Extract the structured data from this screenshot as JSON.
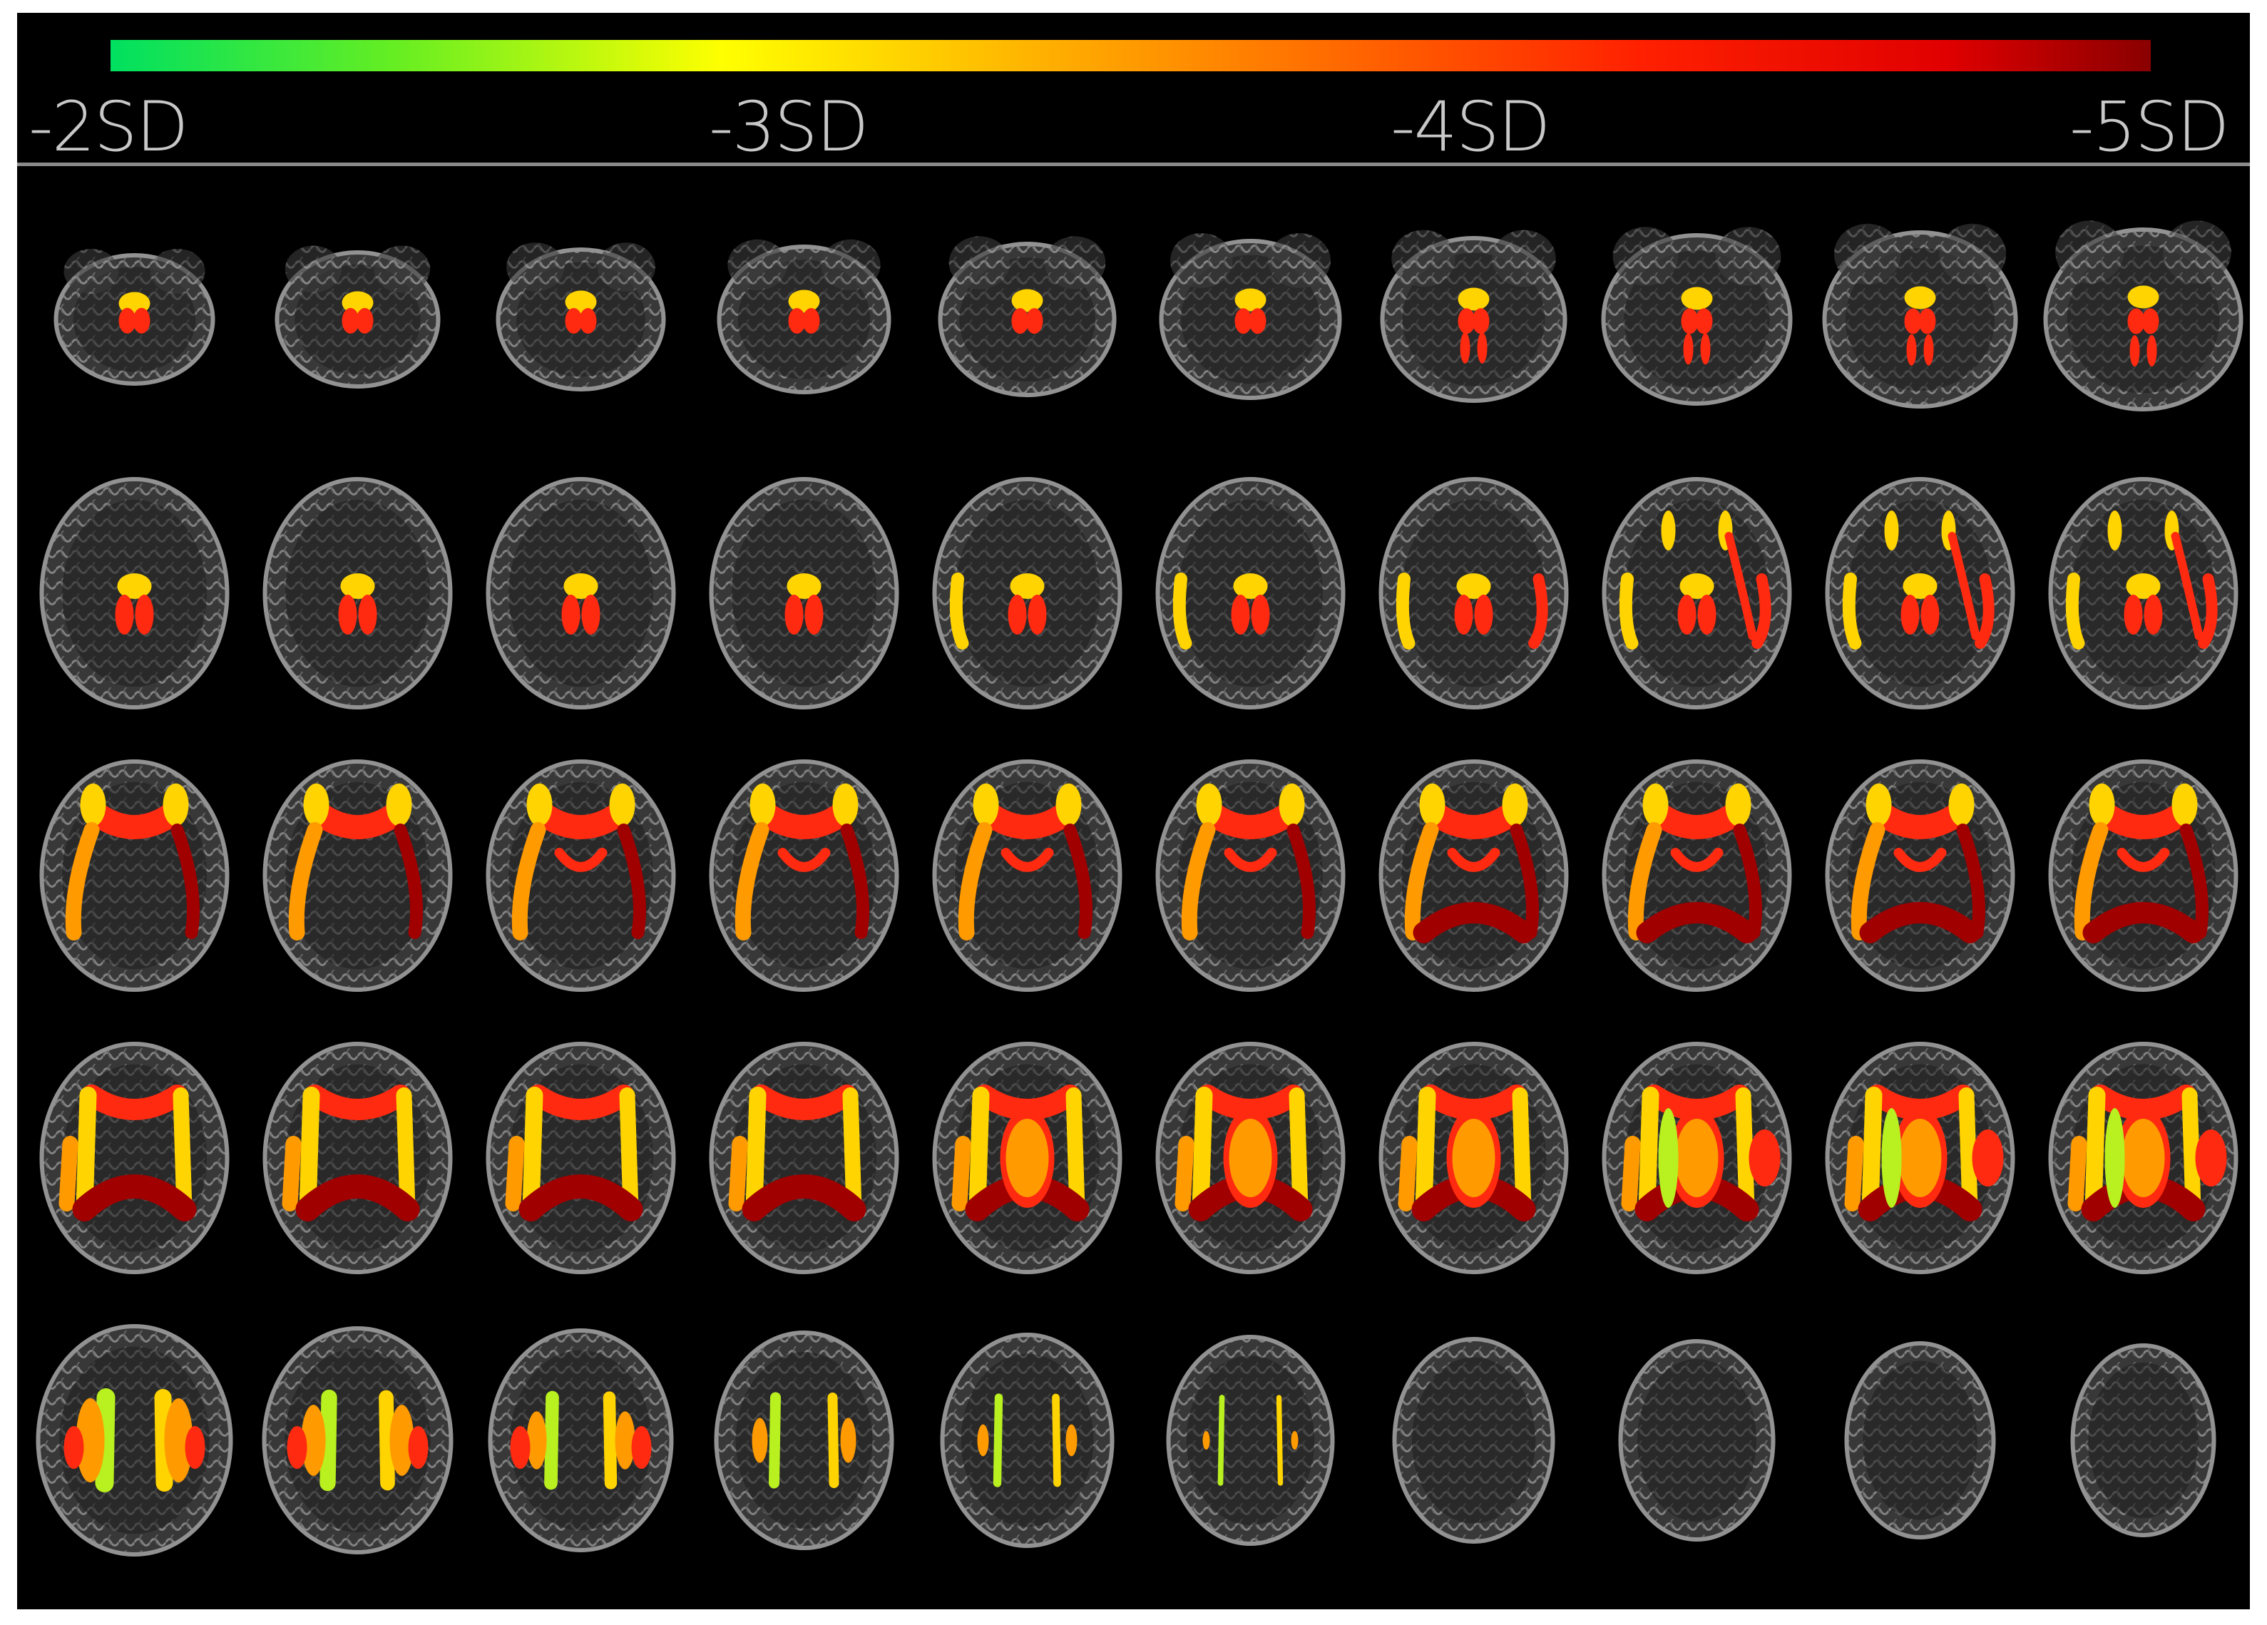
{
  "colorbar": {
    "tick_labels": [
      "-2SD",
      "-3SD",
      "-4SD",
      "-5SD"
    ],
    "gradient_colors": [
      "#00e060",
      "#66ee22",
      "#ffff00",
      "#ffb400",
      "#ff6a00",
      "#ff2000",
      "#e00000",
      "#8a0000"
    ]
  },
  "slices": {
    "rows": 5,
    "columns": 10,
    "background_color": "#000000",
    "tissue_color": "#9a9a9a",
    "overlay_colors": {
      "minus2sd": "#b8f020",
      "minus3sd": "#ffd400",
      "minus3_5sd": "#ff9a00",
      "minus4sd": "#ff2a10",
      "minus5sd": "#a00000"
    }
  }
}
